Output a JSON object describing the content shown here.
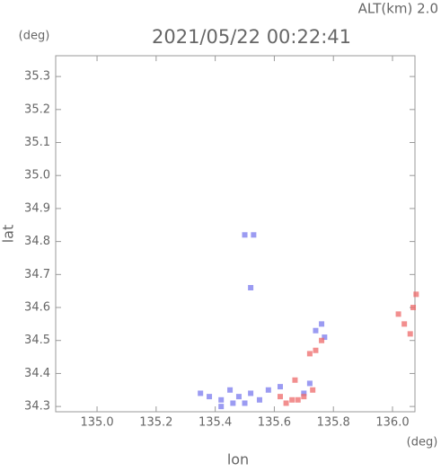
{
  "chart_data": {
    "type": "scatter",
    "title": "2021/05/22 00:22:41",
    "subtitle": "ALT(km) 2.0",
    "x_label": "lon",
    "y_label": "lat",
    "x_unit": "(deg)",
    "y_unit": "(deg)",
    "xlim": [
      134.86,
      136.076
    ],
    "ylim": [
      34.284,
      35.363
    ],
    "xticks": [
      {
        "value": 135.0,
        "label": "135.0"
      },
      135.2,
      135.4,
      135.6,
      135.8,
      {
        "value": 136.0,
        "label": "136.0"
      }
    ],
    "yticks": [
      {
        "value": 34.3,
        "label": "34.3"
      },
      34.4,
      34.5,
      34.6,
      34.7,
      34.8,
      34.9,
      {
        "value": 35.0,
        "label": "35.0"
      },
      35.1,
      35.2,
      35.3
    ],
    "grid": false,
    "series": [
      {
        "color": "#7a7aee",
        "x": [
          135.35,
          135.38,
          135.42,
          135.45,
          135.48,
          135.5,
          135.52,
          135.55,
          135.58,
          135.62,
          135.7,
          135.72,
          135.74,
          135.76,
          135.77,
          135.5,
          135.53,
          135.52,
          135.42,
          135.46
        ],
        "values": [
          34.34,
          34.33,
          34.32,
          34.35,
          34.33,
          34.31,
          34.34,
          34.32,
          34.35,
          34.36,
          34.34,
          34.37,
          34.53,
          34.55,
          34.51,
          34.82,
          34.82,
          34.66,
          34.3,
          34.31
        ]
      },
      {
        "color": "#ee6a6a",
        "x": [
          135.62,
          135.64,
          135.66,
          135.68,
          135.7,
          135.73,
          135.74,
          135.76,
          135.72,
          136.02,
          136.04,
          136.06,
          136.07,
          136.08,
          135.67
        ],
        "values": [
          34.33,
          34.31,
          34.32,
          34.32,
          34.33,
          34.35,
          34.47,
          34.5,
          34.46,
          34.58,
          34.55,
          34.52,
          34.6,
          34.64,
          34.38
        ]
      }
    ]
  }
}
